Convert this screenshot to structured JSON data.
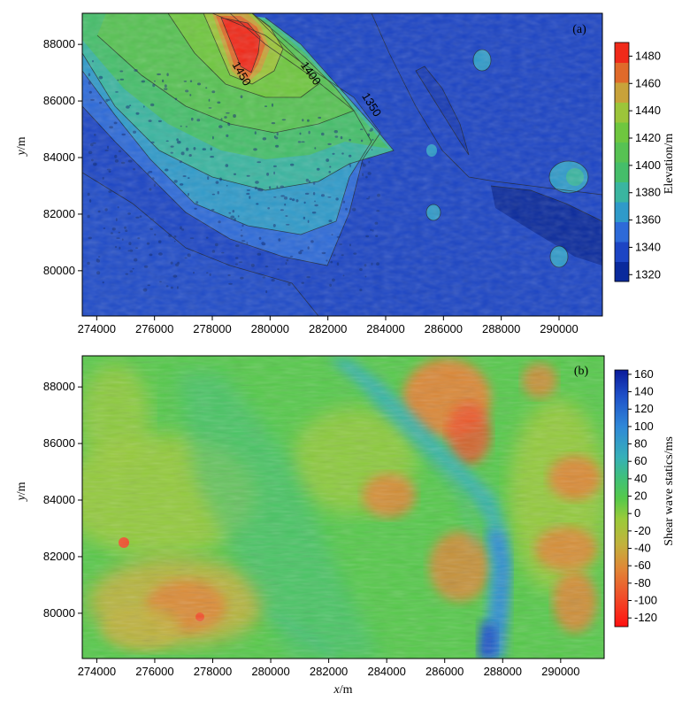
{
  "chart_data": [
    {
      "type": "heatmap",
      "panel_label": "(a)",
      "xlabel": "",
      "ylabel_italic": "y",
      "ylabel_unit": "/m",
      "x_ticks": [
        "274000",
        "276000",
        "278000",
        "280000",
        "282000",
        "284000",
        "286000",
        "288000",
        "290000"
      ],
      "y_ticks": [
        "80000",
        "82000",
        "84000",
        "86000",
        "88000"
      ],
      "xlim": [
        273500,
        291500
      ],
      "ylim": [
        78400,
        89100
      ],
      "colorbar_label": "Elevation/m",
      "colorbar_ticks": [
        "1320",
        "1340",
        "1360",
        "1380",
        "1400",
        "1420",
        "1440",
        "1460",
        "1480"
      ],
      "colorbar_range": [
        1315,
        1490
      ],
      "contour_labels": [
        {
          "text": "1400",
          "x": 281300,
          "y": 86900
        },
        {
          "text": "1450",
          "x": 278900,
          "y": 86900
        },
        {
          "text": "1350",
          "x": 283400,
          "y": 85800
        }
      ],
      "colors": [
        "#0a2a9c",
        "#1c45c4",
        "#2d6ad8",
        "#2f9ac9",
        "#3ab5a0",
        "#45be6a",
        "#57c253",
        "#6fc73f",
        "#9cc53a",
        "#c8a23a",
        "#e06a2a",
        "#f02a1a"
      ]
    },
    {
      "type": "heatmap",
      "panel_label": "(b)",
      "xlabel_italic": "x",
      "xlabel_unit": "/m",
      "ylabel_italic": "y",
      "ylabel_unit": "/m",
      "x_ticks": [
        "274000",
        "276000",
        "278000",
        "280000",
        "282000",
        "284000",
        "286000",
        "288000",
        "290000"
      ],
      "y_ticks": [
        "80000",
        "82000",
        "84000",
        "86000",
        "88000"
      ],
      "xlim": [
        273500,
        291500
      ],
      "ylim": [
        78400,
        89100
      ],
      "colorbar_label": "Shear wave statics/ms",
      "colorbar_ticks": [
        "160",
        "140",
        "120",
        "100",
        "80",
        "60",
        "40",
        "20",
        "0",
        "-20",
        "-40",
        "-60",
        "-80",
        "-100",
        "-120"
      ],
      "colorbar_range": [
        -130,
        165
      ],
      "colors": [
        "#0a1a9a",
        "#1e50c8",
        "#2f88d8",
        "#36b0b8",
        "#3fc07a",
        "#55c94a",
        "#76cf3e",
        "#9acb3a",
        "#c2b23c",
        "#e28436",
        "#f0502a",
        "#ff1010"
      ]
    }
  ]
}
